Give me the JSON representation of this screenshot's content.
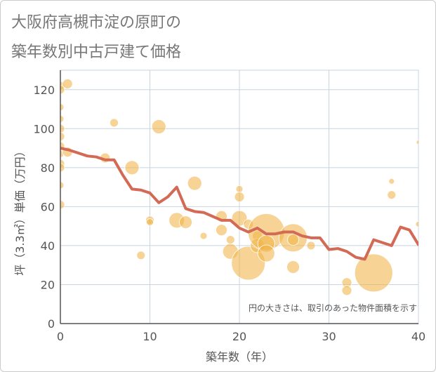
{
  "title_line1": "大阪府高槻市淀の原町の",
  "title_line2": "築年数別中古戸建て価格",
  "chart_data": {
    "type": "scatter",
    "xlabel": "築年数（年）",
    "ylabel": "坪（3.3㎡）単価（万円）",
    "xlim": [
      0,
      40
    ],
    "ylim": [
      0,
      130
    ],
    "x_ticks": [
      "0",
      "10",
      "20",
      "30",
      "40"
    ],
    "y_ticks": [
      "0",
      "20",
      "40",
      "60",
      "80",
      "100",
      "120"
    ],
    "note": "円の大きさは、取引のあった物件面積を示す",
    "grid": true,
    "colors": {
      "bubble": "#f0b040",
      "line": "#d26a55",
      "grid": "#c8d4e0",
      "axis": "#555555"
    },
    "line": {
      "x": [
        0,
        1,
        2,
        3,
        4,
        5,
        6,
        7,
        8,
        9,
        10,
        11,
        12,
        13,
        14,
        15,
        16,
        17,
        18,
        19,
        20,
        21,
        22,
        23,
        24,
        25,
        26,
        27,
        28,
        29,
        30,
        31,
        32,
        33,
        34,
        35,
        36,
        37,
        38,
        39,
        40
      ],
      "y": [
        90,
        89,
        87.5,
        86,
        85.5,
        84,
        84,
        76,
        69,
        68.5,
        67,
        62,
        65,
        70,
        59,
        57.5,
        57,
        55,
        53,
        53,
        49,
        47,
        49,
        46,
        46,
        47,
        47,
        45,
        44,
        44,
        38,
        38.5,
        37,
        34,
        33,
        43,
        41.5,
        40,
        49.5,
        48,
        40.5
      ]
    },
    "bubbles": [
      {
        "x": 0,
        "y": 122,
        "r": 6
      },
      {
        "x": 0,
        "y": 120,
        "r": 6
      },
      {
        "x": 0,
        "y": 111,
        "r": 5
      },
      {
        "x": 0,
        "y": 105,
        "r": 5
      },
      {
        "x": 0,
        "y": 100,
        "r": 6
      },
      {
        "x": 0,
        "y": 96,
        "r": 6
      },
      {
        "x": 0,
        "y": 91,
        "r": 6
      },
      {
        "x": 0,
        "y": 87,
        "r": 5
      },
      {
        "x": 0,
        "y": 82,
        "r": 6
      },
      {
        "x": 0,
        "y": 80,
        "r": 6
      },
      {
        "x": 0,
        "y": 71,
        "r": 5
      },
      {
        "x": 0,
        "y": 61,
        "r": 6
      },
      {
        "x": 0.8,
        "y": 123,
        "r": 7
      },
      {
        "x": 0.8,
        "y": 88,
        "r": 7
      },
      {
        "x": 5,
        "y": 85,
        "r": 7
      },
      {
        "x": 6,
        "y": 103,
        "r": 6
      },
      {
        "x": 8,
        "y": 80,
        "r": 10
      },
      {
        "x": 9,
        "y": 35,
        "r": 6
      },
      {
        "x": 10,
        "y": 53,
        "r": 6
      },
      {
        "x": 10,
        "y": 52,
        "r": 5
      },
      {
        "x": 11,
        "y": 101,
        "r": 10
      },
      {
        "x": 13,
        "y": 53,
        "r": 11
      },
      {
        "x": 14,
        "y": 52,
        "r": 9
      },
      {
        "x": 15,
        "y": 72,
        "r": 10
      },
      {
        "x": 16,
        "y": 45,
        "r": 5
      },
      {
        "x": 18,
        "y": 55,
        "r": 8
      },
      {
        "x": 18,
        "y": 48,
        "r": 8
      },
      {
        "x": 19,
        "y": 43,
        "r": 6
      },
      {
        "x": 19,
        "y": 37,
        "r": 11
      },
      {
        "x": 20,
        "y": 69,
        "r": 5
      },
      {
        "x": 20,
        "y": 65,
        "r": 7
      },
      {
        "x": 20,
        "y": 54,
        "r": 11
      },
      {
        "x": 21,
        "y": 51,
        "r": 7
      },
      {
        "x": 21,
        "y": 31,
        "r": 24
      },
      {
        "x": 22,
        "y": 45,
        "r": 7
      },
      {
        "x": 22,
        "y": 40,
        "r": 10
      },
      {
        "x": 23,
        "y": 47,
        "r": 26
      },
      {
        "x": 23,
        "y": 41,
        "r": 12
      },
      {
        "x": 23,
        "y": 36,
        "r": 12
      },
      {
        "x": 26,
        "y": 44,
        "r": 20
      },
      {
        "x": 26,
        "y": 43,
        "r": 8
      },
      {
        "x": 26,
        "y": 29,
        "r": 9
      },
      {
        "x": 28,
        "y": 40,
        "r": 6
      },
      {
        "x": 32,
        "y": 21,
        "r": 7
      },
      {
        "x": 32,
        "y": 17,
        "r": 7
      },
      {
        "x": 35,
        "y": 26,
        "r": 27
      },
      {
        "x": 37,
        "y": 73,
        "r": 4
      },
      {
        "x": 37,
        "y": 66,
        "r": 6
      },
      {
        "x": 40,
        "y": 93,
        "r": 3
      },
      {
        "x": 40,
        "y": 51,
        "r": 4
      }
    ]
  }
}
